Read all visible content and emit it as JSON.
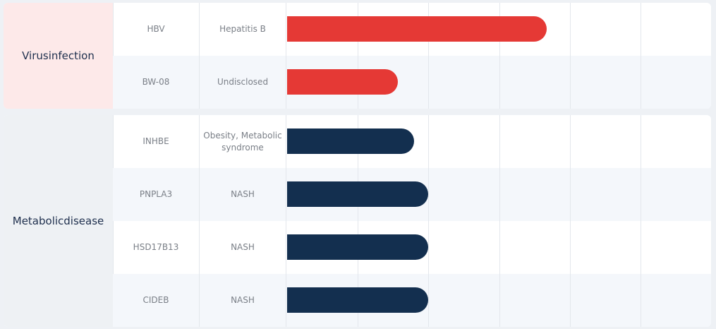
{
  "scale": {
    "xlim": [
      0,
      6
    ]
  },
  "groups": [
    {
      "name": "Virusinfection",
      "label_bg": "#fde9e9",
      "bar_color": "#e53935",
      "rows": [
        {
          "target": "HBV",
          "indication": "Hepatitis B",
          "value": 3.67
        },
        {
          "target": "BW-08",
          "indication": "Undisclosed",
          "value": 1.57
        }
      ]
    },
    {
      "name": "Metabolicdisease",
      "label_bg": "#eef1f4",
      "bar_color": "#132f4f",
      "rows": [
        {
          "target": "INHBE",
          "indication": "Obesity, Metabolic syndrome",
          "value": 1.8
        },
        {
          "target": "PNPLA3",
          "indication": "NASH",
          "value": 2.0
        },
        {
          "target": "HSD17B13",
          "indication": "NASH",
          "value": 2.0
        },
        {
          "target": "CIDEB",
          "indication": "NASH",
          "value": 2.0
        }
      ]
    }
  ]
}
